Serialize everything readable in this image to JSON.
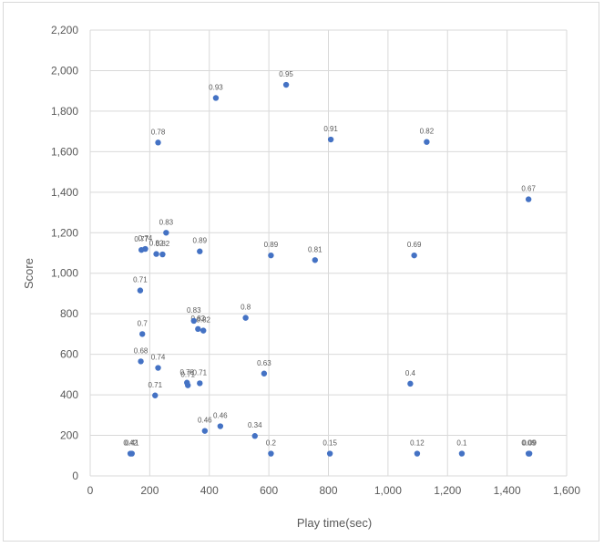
{
  "chart_data": {
    "type": "scatter",
    "title": "",
    "xlabel": "Play time(sec)",
    "ylabel": "Score",
    "xlim": [
      0,
      1600
    ],
    "ylim": [
      0,
      2200
    ],
    "x_ticks": [
      "0",
      "200",
      "400",
      "600",
      "800",
      "1,000",
      "1,200",
      "1,400",
      "1,600"
    ],
    "y_ticks": [
      "0",
      "200",
      "400",
      "600",
      "800",
      "1,000",
      "1,200",
      "1,400",
      "1,600",
      "1,800",
      "2,000",
      "2,200"
    ],
    "grid": true,
    "color": "#4472c4",
    "points": [
      {
        "x": 422,
        "y": 1865,
        "label": "0.93"
      },
      {
        "x": 658,
        "y": 1930,
        "label": "0.95"
      },
      {
        "x": 808,
        "y": 1660,
        "label": "0.91"
      },
      {
        "x": 1130,
        "y": 1648,
        "label": "0.82"
      },
      {
        "x": 228,
        "y": 1645,
        "label": "0.78"
      },
      {
        "x": 1472,
        "y": 1365,
        "label": "0.67"
      },
      {
        "x": 255,
        "y": 1200,
        "label": "0.83"
      },
      {
        "x": 172,
        "y": 1115,
        "label": "0.77"
      },
      {
        "x": 185,
        "y": 1120,
        "label": "0.74"
      },
      {
        "x": 222,
        "y": 1095,
        "label": "0.82"
      },
      {
        "x": 243,
        "y": 1093,
        "label": "0.82"
      },
      {
        "x": 368,
        "y": 1108,
        "label": "0.89"
      },
      {
        "x": 607,
        "y": 1088,
        "label": "0.89"
      },
      {
        "x": 755,
        "y": 1065,
        "label": "0.81"
      },
      {
        "x": 1088,
        "y": 1088,
        "label": "0.69"
      },
      {
        "x": 168,
        "y": 915,
        "label": "0.71"
      },
      {
        "x": 348,
        "y": 765,
        "label": "0.83"
      },
      {
        "x": 362,
        "y": 725,
        "label": "0.82"
      },
      {
        "x": 380,
        "y": 717,
        "label": "0.82"
      },
      {
        "x": 522,
        "y": 780,
        "label": "0.8"
      },
      {
        "x": 175,
        "y": 700,
        "label": "0.7"
      },
      {
        "x": 170,
        "y": 565,
        "label": "0.68"
      },
      {
        "x": 228,
        "y": 533,
        "label": "0.74"
      },
      {
        "x": 325,
        "y": 460,
        "label": "0.78"
      },
      {
        "x": 328,
        "y": 447,
        "label": "0.71"
      },
      {
        "x": 368,
        "y": 457,
        "label": "0.71"
      },
      {
        "x": 584,
        "y": 505,
        "label": "0.63"
      },
      {
        "x": 1075,
        "y": 455,
        "label": "0.4"
      },
      {
        "x": 218,
        "y": 397,
        "label": "0.71"
      },
      {
        "x": 437,
        "y": 245,
        "label": "0.46"
      },
      {
        "x": 385,
        "y": 222,
        "label": "0.46"
      },
      {
        "x": 553,
        "y": 197,
        "label": "0.34"
      },
      {
        "x": 135,
        "y": 110,
        "label": "0.42"
      },
      {
        "x": 140,
        "y": 110,
        "label": "0.41"
      },
      {
        "x": 607,
        "y": 110,
        "label": "0.2"
      },
      {
        "x": 805,
        "y": 110,
        "label": "0.15"
      },
      {
        "x": 1098,
        "y": 110,
        "label": "0.12"
      },
      {
        "x": 1248,
        "y": 110,
        "label": "0.1"
      },
      {
        "x": 1472,
        "y": 110,
        "label": "0.09"
      },
      {
        "x": 1475,
        "y": 110,
        "label": "0.09"
      }
    ]
  }
}
